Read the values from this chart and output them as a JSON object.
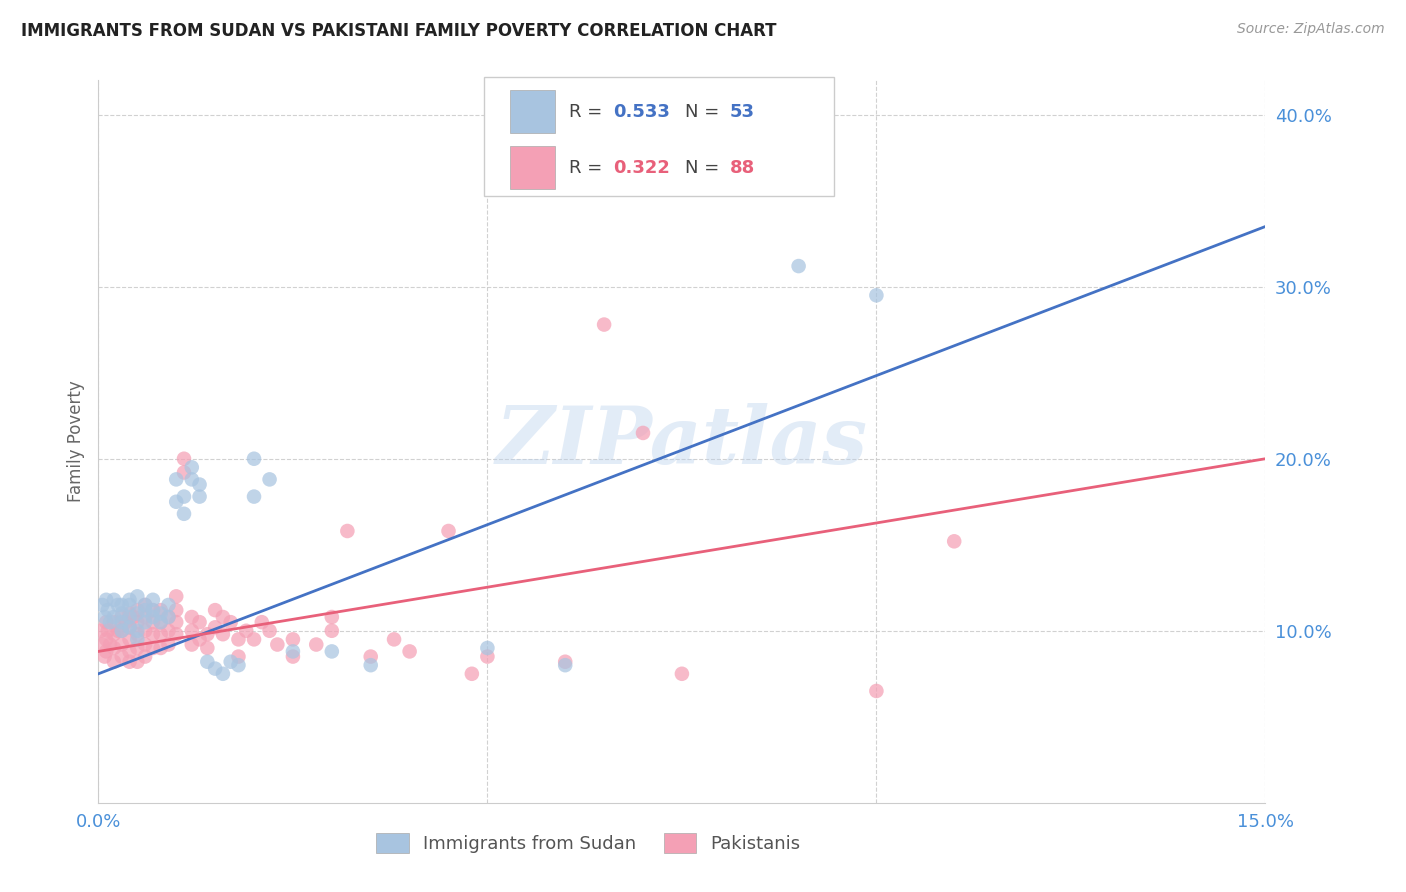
{
  "title": "IMMIGRANTS FROM SUDAN VS PAKISTANI FAMILY POVERTY CORRELATION CHART",
  "source": "Source: ZipAtlas.com",
  "ylabel": "Family Poverty",
  "legend_labels": [
    "Immigrants from Sudan",
    "Pakistanis"
  ],
  "xlim": [
    0.0,
    0.15
  ],
  "ylim": [
    0.0,
    0.42
  ],
  "yticks": [
    0.1,
    0.2,
    0.3,
    0.4
  ],
  "ytick_labels": [
    "10.0%",
    "20.0%",
    "30.0%",
    "40.0%"
  ],
  "xticks": [
    0.0,
    0.05,
    0.1,
    0.15
  ],
  "xtick_labels": [
    "0.0%",
    "",
    "",
    "15.0%"
  ],
  "watermark": "ZIPatlas",
  "color_sudan": "#a8c4e0",
  "color_pakistan": "#f4a0b5",
  "color_sudan_line": "#4472c4",
  "color_pakistan_line": "#e8607a",
  "color_axis_text": "#4a90d9",
  "background_color": "#ffffff",
  "sudan_points": [
    [
      0.0005,
      0.115
    ],
    [
      0.0008,
      0.108
    ],
    [
      0.001,
      0.118
    ],
    [
      0.0012,
      0.112
    ],
    [
      0.0015,
      0.105
    ],
    [
      0.002,
      0.118
    ],
    [
      0.002,
      0.108
    ],
    [
      0.0025,
      0.115
    ],
    [
      0.003,
      0.115
    ],
    [
      0.003,
      0.11
    ],
    [
      0.003,
      0.105
    ],
    [
      0.003,
      0.1
    ],
    [
      0.004,
      0.118
    ],
    [
      0.004,
      0.108
    ],
    [
      0.004,
      0.102
    ],
    [
      0.004,
      0.115
    ],
    [
      0.005,
      0.12
    ],
    [
      0.005,
      0.11
    ],
    [
      0.005,
      0.1
    ],
    [
      0.005,
      0.095
    ],
    [
      0.006,
      0.112
    ],
    [
      0.006,
      0.105
    ],
    [
      0.006,
      0.115
    ],
    [
      0.007,
      0.108
    ],
    [
      0.007,
      0.112
    ],
    [
      0.007,
      0.118
    ],
    [
      0.008,
      0.11
    ],
    [
      0.008,
      0.105
    ],
    [
      0.009,
      0.108
    ],
    [
      0.009,
      0.115
    ],
    [
      0.01,
      0.175
    ],
    [
      0.01,
      0.188
    ],
    [
      0.011,
      0.168
    ],
    [
      0.011,
      0.178
    ],
    [
      0.012,
      0.188
    ],
    [
      0.012,
      0.195
    ],
    [
      0.013,
      0.178
    ],
    [
      0.013,
      0.185
    ],
    [
      0.014,
      0.082
    ],
    [
      0.015,
      0.078
    ],
    [
      0.016,
      0.075
    ],
    [
      0.017,
      0.082
    ],
    [
      0.018,
      0.08
    ],
    [
      0.02,
      0.178
    ],
    [
      0.02,
      0.2
    ],
    [
      0.022,
      0.188
    ],
    [
      0.025,
      0.088
    ],
    [
      0.03,
      0.088
    ],
    [
      0.035,
      0.08
    ],
    [
      0.05,
      0.09
    ],
    [
      0.06,
      0.08
    ],
    [
      0.09,
      0.312
    ],
    [
      0.1,
      0.295
    ]
  ],
  "pakistan_points": [
    [
      0.0003,
      0.1
    ],
    [
      0.0005,
      0.092
    ],
    [
      0.0008,
      0.085
    ],
    [
      0.001,
      0.105
    ],
    [
      0.001,
      0.095
    ],
    [
      0.001,
      0.088
    ],
    [
      0.0012,
      0.1
    ],
    [
      0.0015,
      0.092
    ],
    [
      0.002,
      0.105
    ],
    [
      0.002,
      0.098
    ],
    [
      0.002,
      0.09
    ],
    [
      0.002,
      0.082
    ],
    [
      0.0025,
      0.1
    ],
    [
      0.003,
      0.108
    ],
    [
      0.003,
      0.1
    ],
    [
      0.003,
      0.092
    ],
    [
      0.003,
      0.085
    ],
    [
      0.0035,
      0.105
    ],
    [
      0.004,
      0.11
    ],
    [
      0.004,
      0.102
    ],
    [
      0.004,
      0.095
    ],
    [
      0.004,
      0.088
    ],
    [
      0.004,
      0.082
    ],
    [
      0.0045,
      0.108
    ],
    [
      0.005,
      0.112
    ],
    [
      0.005,
      0.105
    ],
    [
      0.005,
      0.098
    ],
    [
      0.005,
      0.09
    ],
    [
      0.005,
      0.082
    ],
    [
      0.006,
      0.115
    ],
    [
      0.006,
      0.108
    ],
    [
      0.006,
      0.1
    ],
    [
      0.006,
      0.092
    ],
    [
      0.006,
      0.085
    ],
    [
      0.007,
      0.112
    ],
    [
      0.007,
      0.105
    ],
    [
      0.007,
      0.098
    ],
    [
      0.007,
      0.09
    ],
    [
      0.008,
      0.112
    ],
    [
      0.008,
      0.105
    ],
    [
      0.008,
      0.098
    ],
    [
      0.008,
      0.09
    ],
    [
      0.009,
      0.108
    ],
    [
      0.009,
      0.1
    ],
    [
      0.009,
      0.092
    ],
    [
      0.01,
      0.12
    ],
    [
      0.01,
      0.112
    ],
    [
      0.01,
      0.105
    ],
    [
      0.01,
      0.098
    ],
    [
      0.011,
      0.2
    ],
    [
      0.011,
      0.192
    ],
    [
      0.012,
      0.108
    ],
    [
      0.012,
      0.1
    ],
    [
      0.012,
      0.092
    ],
    [
      0.013,
      0.105
    ],
    [
      0.013,
      0.095
    ],
    [
      0.014,
      0.098
    ],
    [
      0.014,
      0.09
    ],
    [
      0.015,
      0.112
    ],
    [
      0.015,
      0.102
    ],
    [
      0.016,
      0.108
    ],
    [
      0.016,
      0.098
    ],
    [
      0.017,
      0.105
    ],
    [
      0.018,
      0.095
    ],
    [
      0.018,
      0.085
    ],
    [
      0.019,
      0.1
    ],
    [
      0.02,
      0.095
    ],
    [
      0.021,
      0.105
    ],
    [
      0.022,
      0.1
    ],
    [
      0.023,
      0.092
    ],
    [
      0.025,
      0.095
    ],
    [
      0.025,
      0.085
    ],
    [
      0.028,
      0.092
    ],
    [
      0.03,
      0.108
    ],
    [
      0.03,
      0.1
    ],
    [
      0.032,
      0.158
    ],
    [
      0.035,
      0.085
    ],
    [
      0.038,
      0.095
    ],
    [
      0.04,
      0.088
    ],
    [
      0.045,
      0.158
    ],
    [
      0.048,
      0.075
    ],
    [
      0.05,
      0.085
    ],
    [
      0.06,
      0.082
    ],
    [
      0.065,
      0.278
    ],
    [
      0.07,
      0.215
    ],
    [
      0.075,
      0.075
    ],
    [
      0.1,
      0.065
    ],
    [
      0.11,
      0.152
    ]
  ],
  "sudan_line": {
    "x0": 0.0,
    "x1": 0.15,
    "y0": 0.075,
    "y1": 0.335
  },
  "pakistan_line": {
    "x0": 0.0,
    "x1": 0.15,
    "y0": 0.088,
    "y1": 0.2
  }
}
